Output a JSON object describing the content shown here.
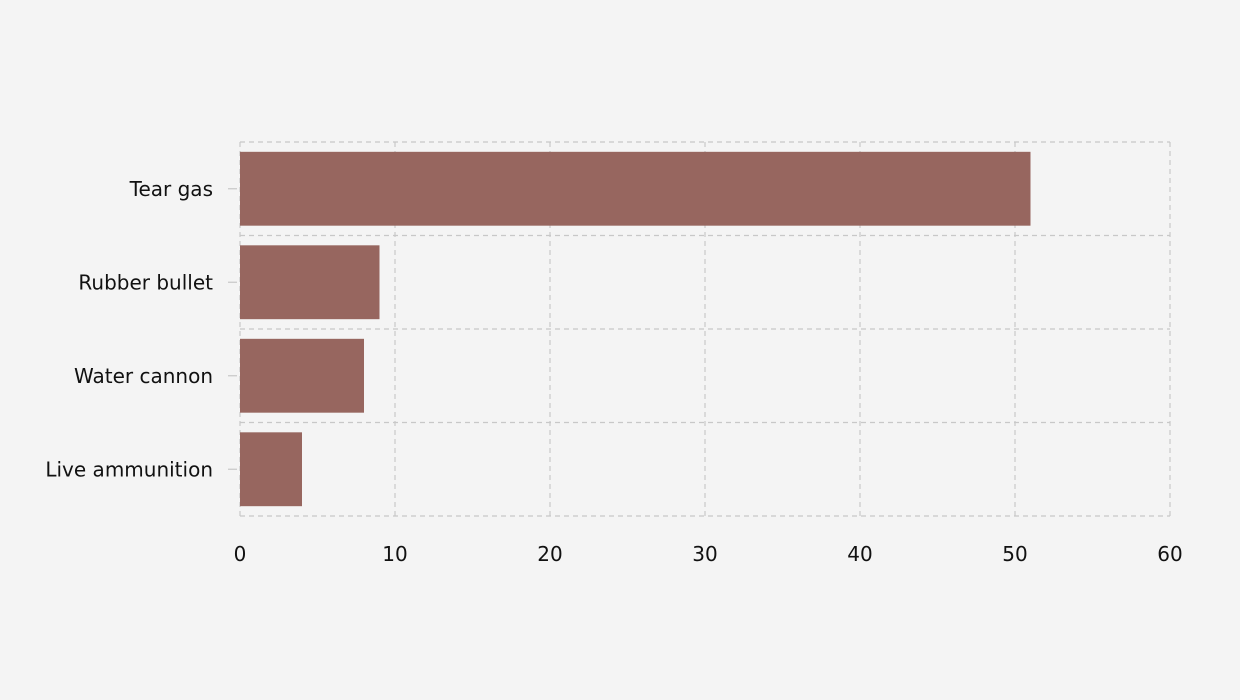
{
  "chart_data": {
    "type": "bar",
    "orientation": "horizontal",
    "categories": [
      "Tear gas",
      "Rubber bullet",
      "Water cannon",
      "Live ammunition"
    ],
    "values": [
      51,
      9,
      8,
      4
    ],
    "xlim": [
      0,
      60
    ],
    "xticks": [
      0,
      10,
      20,
      30,
      40,
      50,
      60
    ],
    "grid": true,
    "legend": "none",
    "title": "",
    "xlabel": "",
    "ylabel": ""
  },
  "colors": {
    "background": "#f4f4f4",
    "bar": "#97665f",
    "grid": "#c8c8c8",
    "tick": "#c8c8c8",
    "text": "#111111"
  }
}
